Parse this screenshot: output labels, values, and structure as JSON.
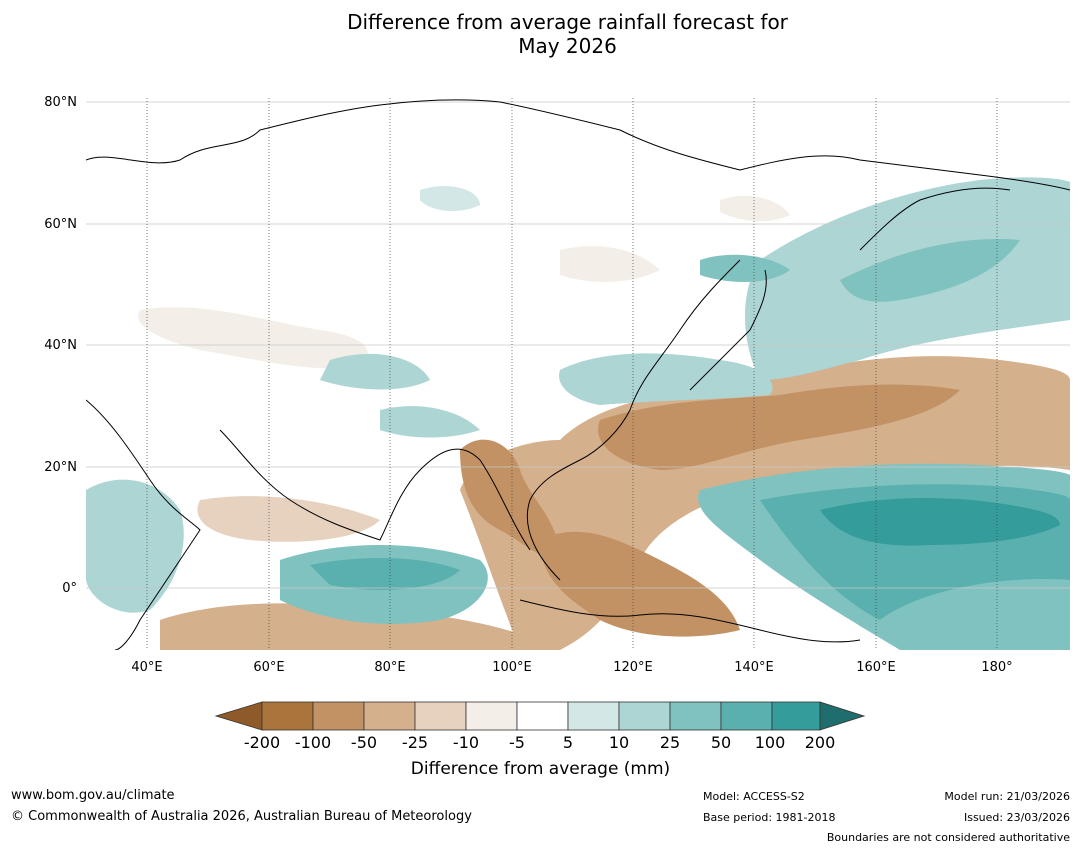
{
  "title_line1": "Difference from average rainfall forecast for",
  "title_line2": "May 2026",
  "map": {
    "projection": "equirectangular",
    "lon_range": [
      30,
      191
    ],
    "lat_range": [
      -10,
      80
    ],
    "lat_labels": [
      "80°N",
      "60°N",
      "40°N",
      "20°N",
      "0°"
    ],
    "lon_labels": [
      "40°E",
      "60°E",
      "80°E",
      "100°E",
      "120°E",
      "140°E",
      "160°E",
      "180°"
    ]
  },
  "colorbar": {
    "caption": "Difference from average (mm)",
    "thresholds": [
      "-200",
      "-100",
      "-50",
      "-25",
      "-10",
      "-5",
      "5",
      "10",
      "25",
      "50",
      "100",
      "200"
    ],
    "colors": {
      "lt_neg200": "#8e5a2a",
      "neg200_neg100": "#ab743d",
      "neg100_neg50": "#c29264",
      "neg50_neg25": "#d5b08c",
      "neg25_neg10": "#e6d2bf",
      "neg10_neg5": "#f3eee8",
      "neg5_5": "#ffffff",
      "5_10": "#d3e8e6",
      "10_25": "#acd5d4",
      "25_50": "#80c2c0",
      "50_100": "#5ab0ae",
      "100_200": "#349c9a",
      "gt_200": "#1f6d6c"
    }
  },
  "footer": {
    "website": "www.bom.gov.au/climate",
    "copyright": "© Commonwealth of Australia 2026, Australian Bureau of Meteorology",
    "model": "Model: ACCESS-S2",
    "base_period": "Base period: 1981-2018",
    "model_run": "Model run: 21/03/2026",
    "issued": "Issued: 23/03/2026",
    "disclaimer": "Boundaries are not considered authoritative"
  }
}
